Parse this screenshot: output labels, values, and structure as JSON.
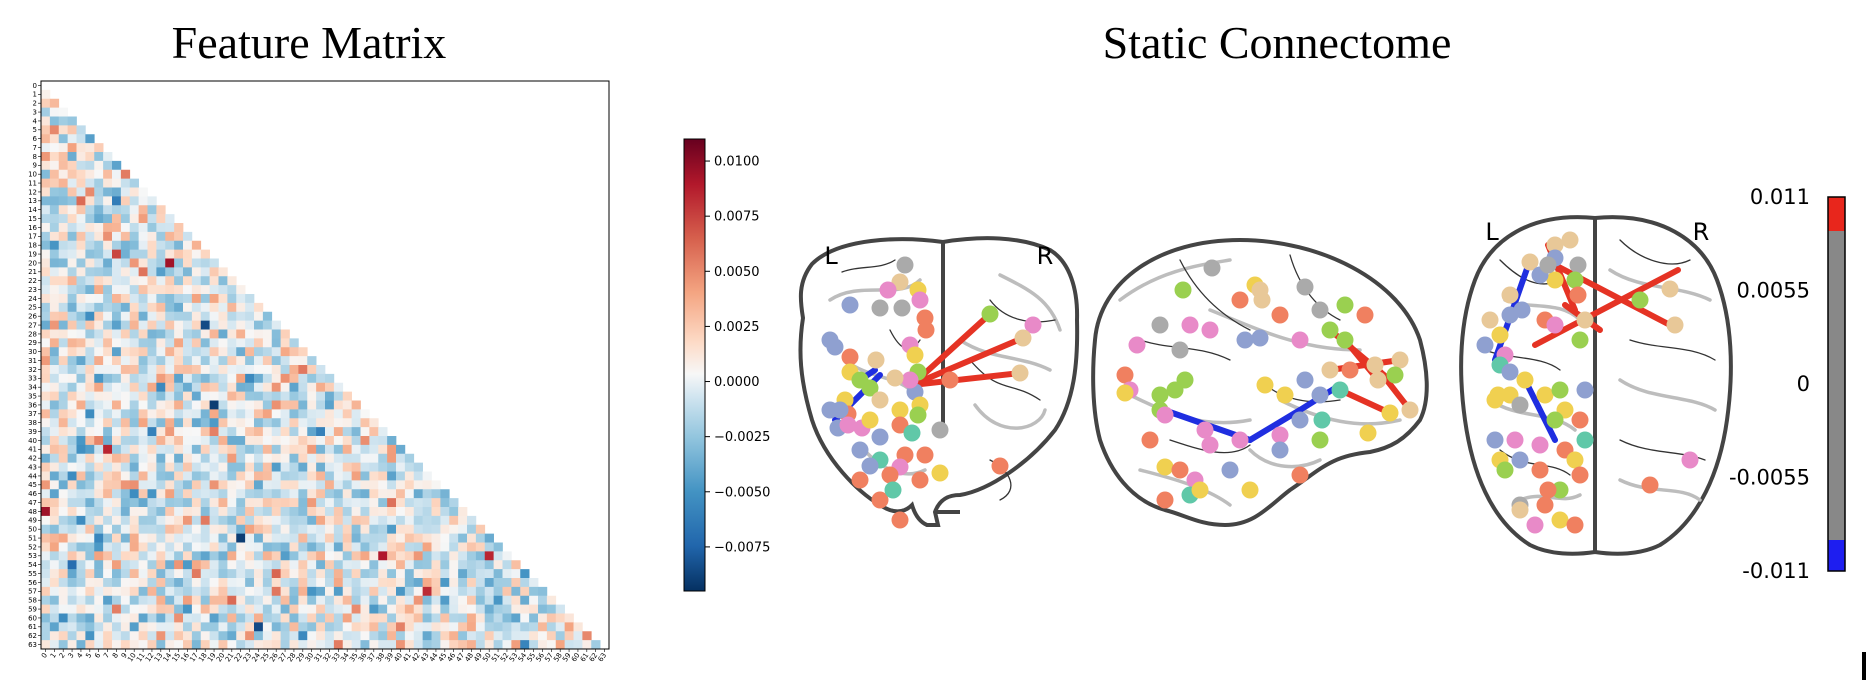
{
  "left_panel": {
    "title": "Feature Matrix",
    "axis_ticks": [
      "0",
      "1",
      "2",
      "3",
      "4",
      "5",
      "6",
      "7",
      "8",
      "9",
      "10",
      "11",
      "12",
      "13",
      "14",
      "15",
      "16",
      "17",
      "18",
      "19",
      "20",
      "21",
      "22",
      "23",
      "24",
      "25",
      "26",
      "27",
      "28",
      "29",
      "30",
      "31",
      "32",
      "33",
      "34",
      "35",
      "36",
      "37",
      "38",
      "39",
      "40",
      "41",
      "42",
      "43",
      "44",
      "45",
      "46",
      "47",
      "48",
      "49",
      "50",
      "51",
      "52",
      "53",
      "54",
      "55",
      "56",
      "57",
      "58",
      "59",
      "60",
      "61",
      "62",
      "63"
    ],
    "colorbar": {
      "ticks": [
        "0.0100",
        "0.0075",
        "0.0050",
        "0.0025",
        "0.0000",
        "−0.0025",
        "−0.0050",
        "−0.0075"
      ],
      "range": [
        -0.0095,
        0.011
      ],
      "colormap": "RdBu_r"
    }
  },
  "right_panel": {
    "title": "Static Connectome",
    "hemisphere_left": "L",
    "hemisphere_right": "R",
    "colorbar": {
      "ticks": [
        "0.011",
        "0.0055",
        "0",
        "-0.0055",
        "-0.011"
      ],
      "colors": {
        "positive": "#e8261c",
        "neutral": "#888888",
        "negative": "#1e1ef0"
      }
    },
    "edge_colors": {
      "positive": "#e53324",
      "negative": "#1f2ee0"
    },
    "node_palette": [
      "#f0d050",
      "#e88ac8",
      "#8fa0d0",
      "#aaaaaa",
      "#f08060",
      "#9ad050",
      "#e8c898",
      "#60c8a8"
    ]
  },
  "chart_data": [
    {
      "type": "heatmap",
      "title": "Feature Matrix",
      "rows": 64,
      "columns": 64,
      "mask": "lower-triangular (strict)",
      "colormap": "RdBu_r",
      "vmin": -0.0095,
      "vmax": 0.011,
      "notable_cells": [
        {
          "row": 48,
          "col": 0,
          "value": 0.0095
        },
        {
          "row": 41,
          "col": 7,
          "value": 0.0085
        },
        {
          "row": 53,
          "col": 38,
          "value": 0.009
        },
        {
          "row": 53,
          "col": 50,
          "value": 0.0085
        },
        {
          "row": 27,
          "col": 18,
          "value": -0.0085
        },
        {
          "row": 36,
          "col": 19,
          "value": -0.009
        },
        {
          "row": 51,
          "col": 22,
          "value": -0.009
        },
        {
          "row": 61,
          "col": 24,
          "value": -0.0085
        }
      ]
    }
  ]
}
